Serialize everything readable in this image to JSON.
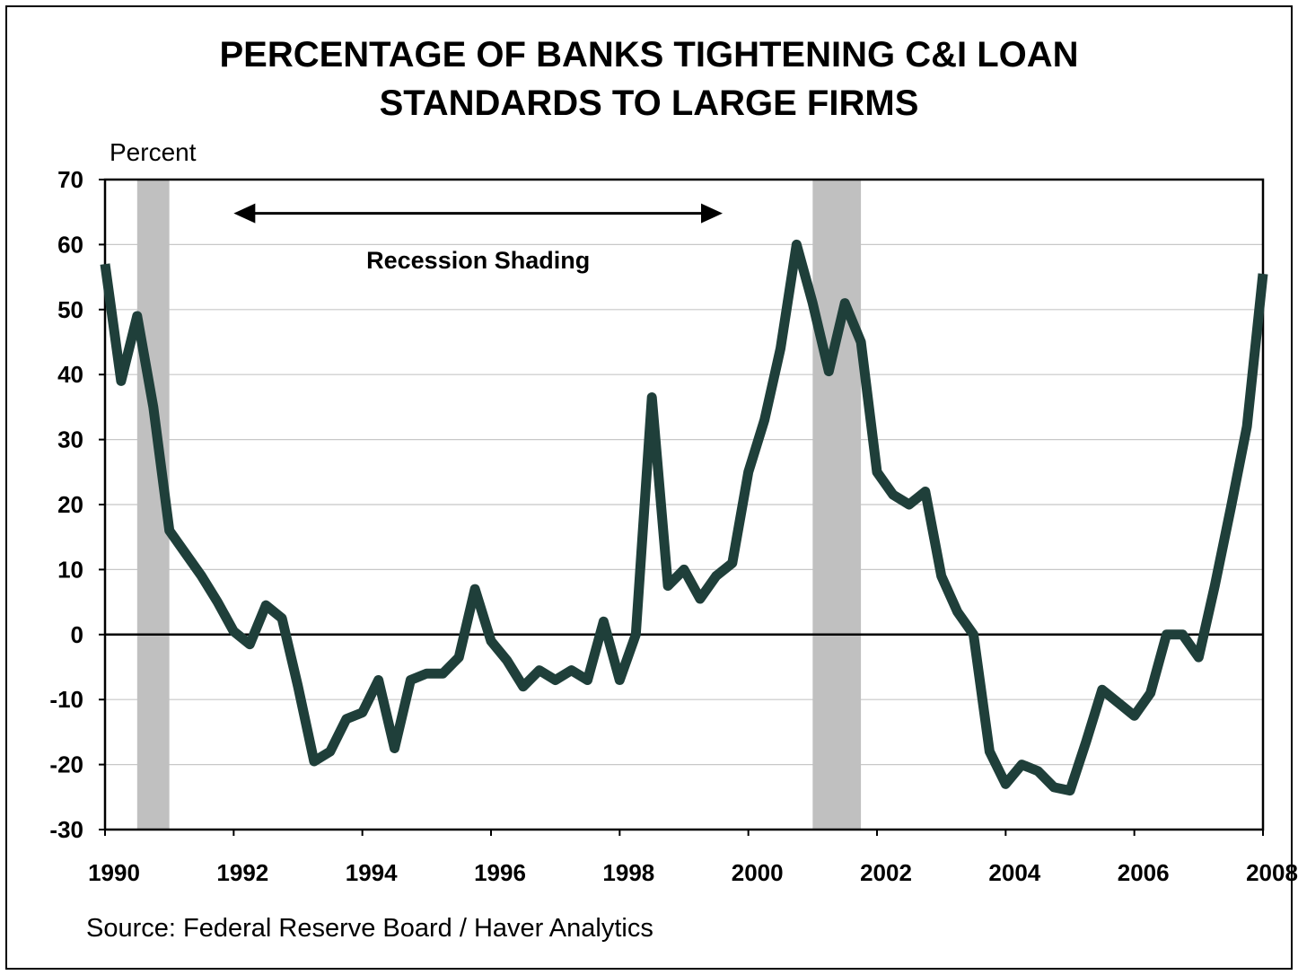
{
  "chart_data": {
    "type": "line",
    "title_lines": [
      "PERCENTAGE OF BANKS TIGHTENING C&I LOAN",
      "STANDARDS TO LARGE FIRMS"
    ],
    "ylabel": "Percent",
    "source": "Source: Federal Reserve Board / Haver Analytics",
    "annotation": "Recession Shading",
    "xlim": [
      1990,
      2008
    ],
    "ylim": [
      -30,
      70
    ],
    "yticks": [
      70,
      60,
      50,
      40,
      30,
      20,
      10,
      0,
      -10,
      -20,
      -30
    ],
    "ytick_labels": [
      "70",
      "60",
      "50",
      "40",
      "30",
      "20",
      "10",
      "0",
      "-10",
      "-20",
      "-30"
    ],
    "xticks": [
      1990,
      1992,
      1994,
      1996,
      1998,
      2000,
      2002,
      2004,
      2006,
      2008
    ],
    "xtick_labels": [
      "1990",
      "1992",
      "1994",
      "1996",
      "1998",
      "2000",
      "2002",
      "2004",
      "2006",
      "2008"
    ],
    "grid": true,
    "recessions": [
      [
        1990.5,
        1991.0
      ],
      [
        2001.0,
        2001.75
      ]
    ],
    "annotation_arrow": [
      1992.0,
      1999.6
    ],
    "colors": {
      "line": "#1f3f3a",
      "recession": "#c0c0c0",
      "grid": "#c8c8c8"
    },
    "series": [
      {
        "x": [
          1990.0,
          1990.25,
          1990.5,
          1990.75,
          1991.0,
          1991.25,
          1991.5,
          1991.75,
          1992.0,
          1992.25,
          1992.5,
          1992.75,
          1993.0,
          1993.25,
          1993.5,
          1993.75,
          1994.0,
          1994.25,
          1994.5,
          1994.75,
          1995.0,
          1995.25,
          1995.5,
          1995.75,
          1996.0,
          1996.25,
          1996.5,
          1996.75,
          1997.0,
          1997.25,
          1997.5,
          1997.75,
          1998.0,
          1998.25,
          1998.5,
          1998.75,
          1999.0,
          1999.25,
          1999.5,
          1999.75,
          2000.0,
          2000.25,
          2000.5,
          2000.75,
          2001.0,
          2001.25,
          2001.5,
          2001.75,
          2002.0,
          2002.25,
          2002.5,
          2002.75,
          2003.0,
          2003.25,
          2003.5,
          2003.75,
          2004.0,
          2004.25,
          2004.5,
          2004.75,
          2005.0,
          2005.25,
          2005.5,
          2005.75,
          2006.0,
          2006.25,
          2006.5,
          2006.75,
          2007.0,
          2007.25,
          2007.5,
          2007.75,
          2008.0
        ],
        "values": [
          57,
          39,
          49,
          35,
          16,
          12.5,
          9,
          5,
          0.5,
          -1.5,
          4.5,
          2.5,
          -8,
          -19.5,
          -18,
          -13,
          -12,
          -7,
          -17.5,
          -7,
          -6,
          -6,
          -3.5,
          7,
          -1,
          -4,
          -8,
          -5.5,
          -7,
          -5.5,
          -7,
          2,
          -7,
          0,
          36.5,
          7.5,
          10,
          5.5,
          9,
          11,
          25,
          33,
          44,
          60,
          51,
          40.5,
          51,
          45,
          25,
          21.5,
          20,
          22,
          9,
          3.5,
          0,
          -18,
          -23,
          -20,
          -21,
          -23.5,
          -24,
          -16.5,
          -8.5,
          -10.5,
          -12.5,
          -9,
          0,
          0,
          -3.5,
          7.5,
          19.5,
          32,
          55.5
        ]
      }
    ]
  }
}
